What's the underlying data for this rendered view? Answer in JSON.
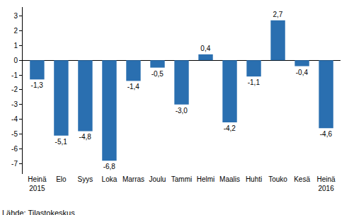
{
  "chart_data": {
    "type": "bar",
    "categories": [
      "Heinä\n2015",
      "Elo",
      "Syys",
      "Loka",
      "Marras",
      "Joulu",
      "Tammi",
      "Helmi",
      "Maalis",
      "Huhti",
      "Touko",
      "Kesä",
      "Heinä\n2016"
    ],
    "values": [
      -1.3,
      -5.1,
      -4.8,
      -6.8,
      -1.4,
      -0.5,
      -3.0,
      0.4,
      -4.2,
      -1.1,
      2.7,
      -0.4,
      -4.6
    ],
    "value_labels": [
      "-1,3",
      "-5,1",
      "-4,8",
      "-6,8",
      "-1,4",
      "-0,5",
      "-3,0",
      "0,4",
      "-4,2",
      "-1,1",
      "2,7",
      "-0,4",
      "-4,6"
    ],
    "data_labels": true,
    "color": "#2a6fb0",
    "ylim": [
      -7.7,
      3.6
    ],
    "yticks": [
      -7,
      -6,
      -5,
      -4,
      -3,
      -2,
      -1,
      0,
      1,
      2,
      3
    ],
    "grid": false,
    "annotations": [
      "Lähde: Tilastokeskus"
    ]
  }
}
